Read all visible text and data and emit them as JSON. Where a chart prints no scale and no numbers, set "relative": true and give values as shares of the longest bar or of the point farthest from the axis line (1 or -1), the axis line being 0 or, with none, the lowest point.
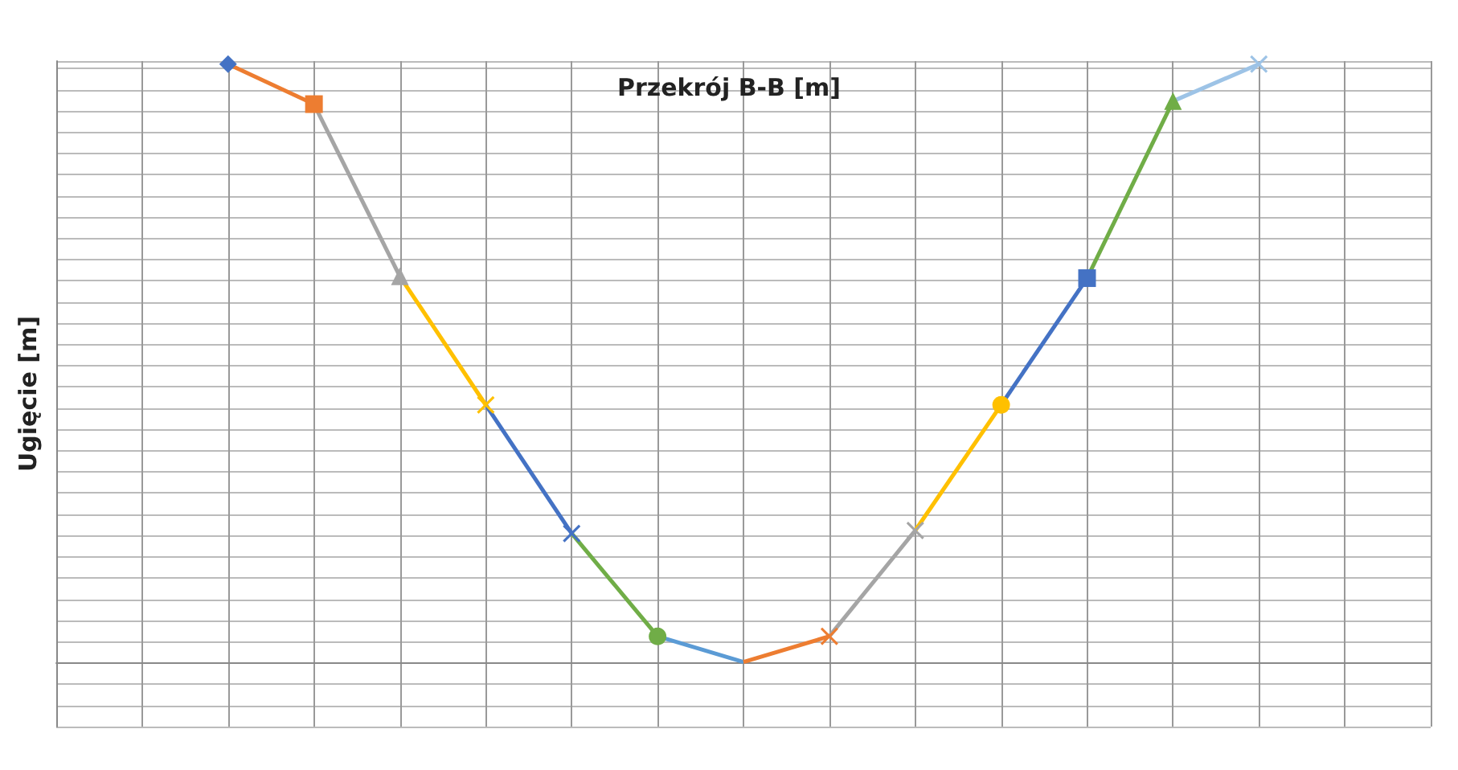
{
  "chart_data": {
    "type": "line",
    "title": "Przekrój B-B [m]",
    "ylabel": "Ugięcie [m]",
    "relative": true,
    "grid": true,
    "categories": [
      null,
      null,
      null,
      null,
      null,
      null,
      null,
      null,
      null,
      null,
      null,
      null,
      null,
      null,
      null,
      null,
      null
    ],
    "series": [
      {
        "color": "#4472c4",
        "marker": "diamond",
        "values": [
          null,
          null,
          1,
          null,
          null,
          null,
          null,
          null,
          null,
          null,
          null,
          null,
          null,
          null,
          null,
          null,
          null
        ]
      },
      {
        "color": "#ed7d31",
        "marker": "square",
        "values": [
          null,
          null,
          1,
          0.933,
          null,
          null,
          null,
          null,
          null,
          null,
          null,
          null,
          null,
          null,
          null,
          null,
          null
        ]
      },
      {
        "color": "#a5a5a5",
        "marker": "triangle",
        "values": [
          null,
          null,
          null,
          0.933,
          0.645,
          null,
          null,
          null,
          null,
          null,
          null,
          null,
          null,
          null,
          null,
          null,
          null
        ]
      },
      {
        "color": "#ffc000",
        "marker": "cross",
        "values": [
          null,
          null,
          null,
          null,
          0.645,
          0.43,
          null,
          null,
          null,
          null,
          null,
          null,
          null,
          null,
          null,
          null,
          null
        ]
      },
      {
        "color": "#4472c4",
        "marker": "cross",
        "values": [
          null,
          null,
          null,
          null,
          null,
          0.43,
          0.215,
          null,
          null,
          null,
          null,
          null,
          null,
          null,
          null,
          null,
          null
        ]
      },
      {
        "color": "#70ad47",
        "marker": "circle",
        "values": [
          null,
          null,
          null,
          null,
          null,
          null,
          0.215,
          0.043,
          null,
          null,
          null,
          null,
          null,
          null,
          null,
          null,
          null
        ]
      },
      {
        "color": "#5b9bd5",
        "marker": "none",
        "values": [
          null,
          null,
          null,
          null,
          null,
          null,
          null,
          0.043,
          0,
          null,
          null,
          null,
          null,
          null,
          null,
          null,
          null
        ]
      },
      {
        "color": "#ed7d31",
        "marker": "cross",
        "values": [
          null,
          null,
          null,
          null,
          null,
          null,
          null,
          null,
          0,
          0.043,
          null,
          null,
          null,
          null,
          null,
          null,
          null
        ]
      },
      {
        "color": "#a5a5a5",
        "marker": "cross",
        "values": [
          null,
          null,
          null,
          null,
          null,
          null,
          null,
          null,
          null,
          0.043,
          0.22,
          null,
          null,
          null,
          null,
          null,
          null
        ]
      },
      {
        "color": "#ffc000",
        "marker": "circle",
        "values": [
          null,
          null,
          null,
          null,
          null,
          null,
          null,
          null,
          null,
          null,
          0.22,
          0.43,
          null,
          null,
          null,
          null,
          null
        ]
      },
      {
        "color": "#4472c4",
        "marker": "square",
        "values": [
          null,
          null,
          null,
          null,
          null,
          null,
          null,
          null,
          null,
          null,
          null,
          0.43,
          0.642,
          null,
          null,
          null,
          null
        ]
      },
      {
        "color": "#70ad47",
        "marker": "triangle",
        "values": [
          null,
          null,
          null,
          null,
          null,
          null,
          null,
          null,
          null,
          null,
          null,
          null,
          0.642,
          0.938,
          null,
          null,
          null
        ]
      },
      {
        "color": "#9dc3e6",
        "marker": "cross",
        "values": [
          null,
          null,
          null,
          null,
          null,
          null,
          null,
          null,
          null,
          null,
          null,
          null,
          null,
          0.938,
          1,
          null,
          null
        ]
      }
    ]
  }
}
